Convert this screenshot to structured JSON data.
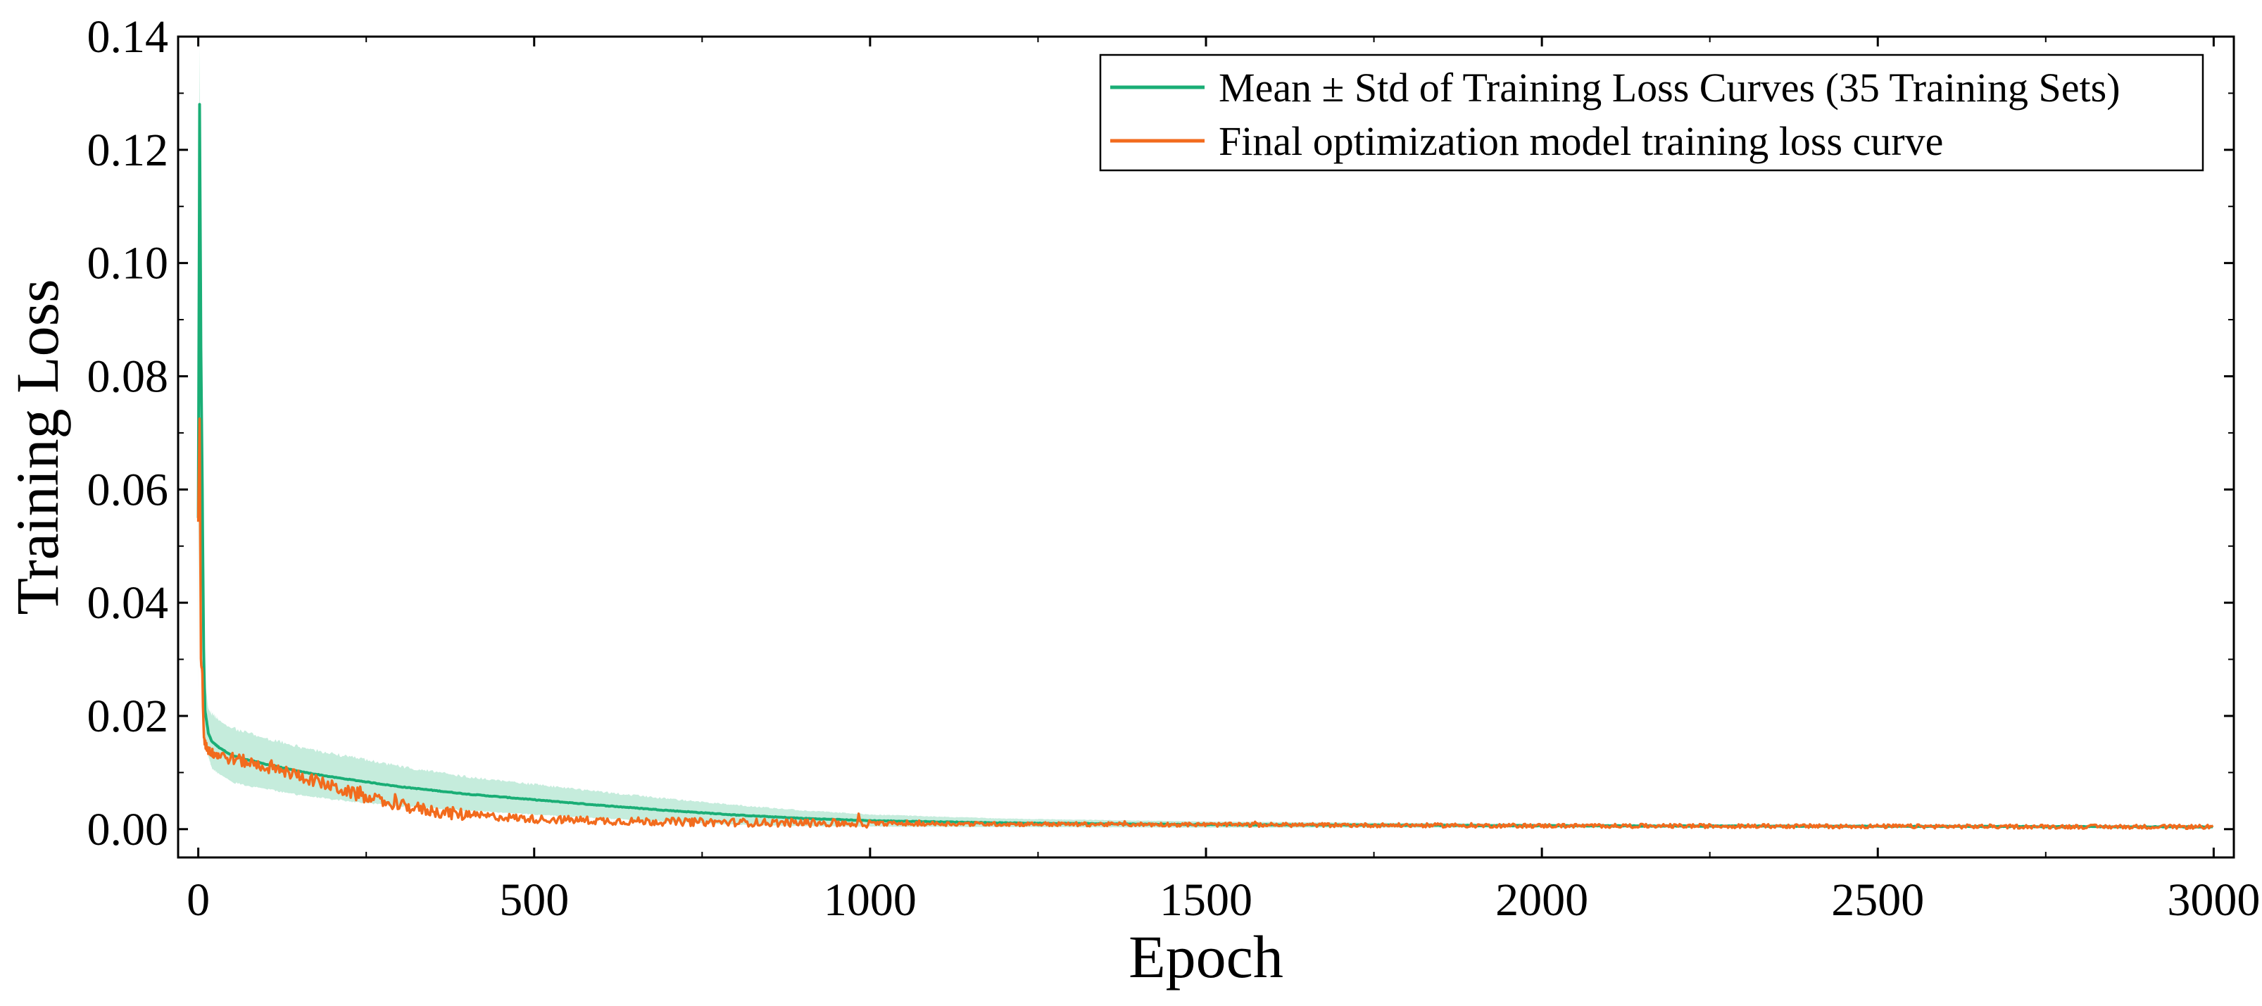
{
  "chart_data": {
    "type": "line",
    "title": "",
    "xlabel": "Epoch",
    "ylabel": "Training Loss",
    "xlim": [
      -30,
      3030
    ],
    "ylim": [
      -0.005,
      0.14
    ],
    "xticks": [
      0,
      500,
      1000,
      1500,
      2000,
      2500,
      3000
    ],
    "xtick_labels": [
      "0",
      "500",
      "1000",
      "1500",
      "2000",
      "2500",
      "3000"
    ],
    "yticks": [
      0.0,
      0.02,
      0.04,
      0.06,
      0.08,
      0.1,
      0.12,
      0.14
    ],
    "ytick_labels": [
      "0.00",
      "0.02",
      "0.04",
      "0.06",
      "0.08",
      "0.10",
      "0.12",
      "0.14"
    ],
    "grid": false,
    "legend_position": "top-right",
    "series": [
      {
        "name": "Mean ± Std of Training Loss Curves (35 Training Sets)",
        "color": "#1aae76",
        "band_color": "#c5ecdc",
        "x": [
          0,
          2,
          4,
          6,
          8,
          10,
          15,
          20,
          30,
          50,
          75,
          100,
          150,
          200,
          300,
          400,
          500,
          600,
          700,
          800,
          900,
          1000,
          1200,
          1500,
          2000,
          2500,
          3000
        ],
        "values": [
          0.055,
          0.128,
          0.085,
          0.06,
          0.032,
          0.021,
          0.017,
          0.0155,
          0.0145,
          0.013,
          0.0122,
          0.0115,
          0.0102,
          0.0092,
          0.0075,
          0.0062,
          0.0052,
          0.0042,
          0.0033,
          0.0025,
          0.0019,
          0.0015,
          0.0011,
          0.0008,
          0.0006,
          0.0005,
          0.0004
        ],
        "std": [
          0.03,
          0.01,
          0.008,
          0.006,
          0.006,
          0.005,
          0.004,
          0.0045,
          0.0045,
          0.0045,
          0.0044,
          0.0042,
          0.004,
          0.0038,
          0.0033,
          0.0028,
          0.0025,
          0.0022,
          0.0019,
          0.0016,
          0.0013,
          0.001,
          0.0007,
          0.0005,
          0.0003,
          0.00025,
          0.0002
        ]
      },
      {
        "name": "Final optimization model training loss curve",
        "color": "#f26b1d",
        "x": [
          0,
          2,
          4,
          6,
          8,
          10,
          15,
          20,
          30,
          50,
          75,
          100,
          150,
          200,
          250,
          300,
          350,
          400,
          500,
          600,
          700,
          800,
          900,
          1000,
          1200,
          1500,
          2000,
          2500,
          3000
        ],
        "values": [
          0.054,
          0.073,
          0.03,
          0.027,
          0.017,
          0.015,
          0.014,
          0.0135,
          0.013,
          0.0125,
          0.0118,
          0.011,
          0.0095,
          0.0075,
          0.0055,
          0.0042,
          0.0032,
          0.0025,
          0.0018,
          0.0015,
          0.0013,
          0.0012,
          0.0011,
          0.001,
          0.0009,
          0.0008,
          0.0006,
          0.0005,
          0.0004
        ]
      }
    ]
  }
}
